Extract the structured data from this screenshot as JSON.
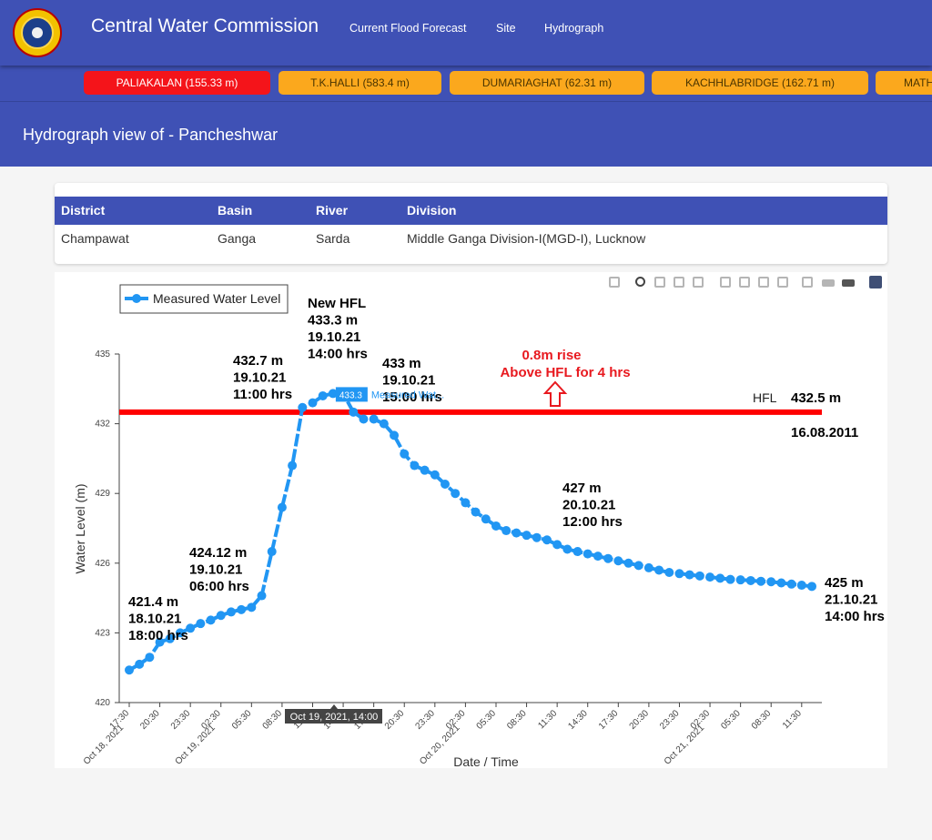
{
  "header": {
    "title": "Central Water Commission",
    "nav": [
      "Current Flood Forecast",
      "Site",
      "Hydrograph"
    ]
  },
  "stations": [
    {
      "label": "PALIAKALAN (155.33 m)",
      "active": true
    },
    {
      "label": "T.K.HALLI (583.4 m)",
      "active": false
    },
    {
      "label": "DUMARIAGHAT (62.31 m)",
      "active": false
    },
    {
      "label": "KACHHLABRIDGE (162.71 m)",
      "active": false
    },
    {
      "label": "MATH",
      "active": false
    }
  ],
  "page": {
    "title": "Hydrograph view of - Pancheshwar"
  },
  "info": {
    "headers": [
      "District",
      "Basin",
      "River",
      "Division"
    ],
    "values": [
      "Champawat",
      "Ganga",
      "Sarda",
      "Middle Ganga Division-I(MGD-I), Lucknow"
    ]
  },
  "colors": {
    "primary": "#3f51b5",
    "active_station": "#f4141a",
    "station": "#fba81d",
    "series": "#2196f3",
    "hfl": "#ff0000"
  },
  "modebar_icons": [
    "camera-icon",
    "zoom-icon",
    "pan-icon",
    "box-select-icon",
    "lasso-icon",
    "zoom-in-icon",
    "zoom-out-icon",
    "autoscale-icon",
    "reset-axes-icon",
    "spike-lines-icon",
    "hover-closest-icon",
    "hover-compare-icon",
    "plotly-logo-icon"
  ],
  "chart_data": {
    "type": "line",
    "legend": "Measured Water Level",
    "ylabel": "Water Level (m)",
    "xlabel": "Date / Time",
    "ylim": [
      420,
      435
    ],
    "yticks": [
      "420",
      "423",
      "426",
      "429",
      "432",
      "435"
    ],
    "x_tick_labels": [
      {
        "t": 0,
        "label": "17:30"
      },
      {
        "t": 3,
        "label": "20:30"
      },
      {
        "t": 6,
        "label": "23:30"
      },
      {
        "t": 9,
        "label": "02:30"
      },
      {
        "t": 12,
        "label": "05:30"
      },
      {
        "t": 15,
        "label": "08:30"
      },
      {
        "t": 18,
        "label": "11:30"
      },
      {
        "t": 21,
        "label": "14:30"
      },
      {
        "t": 24,
        "label": "17:30"
      },
      {
        "t": 27,
        "label": "20:30"
      },
      {
        "t": 30,
        "label": "23:30"
      },
      {
        "t": 33,
        "label": "02:30"
      },
      {
        "t": 36,
        "label": "05:30"
      },
      {
        "t": 39,
        "label": "08:30"
      },
      {
        "t": 42,
        "label": "11:30"
      },
      {
        "t": 45,
        "label": "14:30"
      },
      {
        "t": 48,
        "label": "17:30"
      },
      {
        "t": 51,
        "label": "20:30"
      },
      {
        "t": 54,
        "label": "23:30"
      },
      {
        "t": 57,
        "label": "02:30"
      },
      {
        "t": 60,
        "label": "05:30"
      },
      {
        "t": 63,
        "label": "08:30"
      },
      {
        "t": 66,
        "label": "11:30"
      }
    ],
    "x_date_labels": [
      {
        "t": 0,
        "label": "Oct 18, 2021"
      },
      {
        "t": 9,
        "label": "Oct 19, 2021"
      },
      {
        "t": 33,
        "label": "Oct 20, 2021"
      },
      {
        "t": 57,
        "label": "Oct 21, 2021"
      }
    ],
    "t_start": "Oct 18, 2021, 17:30",
    "t_step_hours": 1,
    "series": [
      {
        "name": "Measured Water Level",
        "values": [
          421.4,
          421.65,
          421.95,
          422.6,
          422.75,
          423.0,
          423.2,
          423.4,
          423.55,
          423.75,
          423.9,
          424.0,
          424.1,
          424.6,
          426.5,
          428.4,
          430.2,
          432.7,
          432.9,
          433.2,
          433.3,
          433.3,
          432.5,
          432.2,
          432.2,
          432.0,
          431.5,
          430.7,
          430.2,
          430.0,
          429.8,
          429.4,
          429.0,
          428.6,
          428.2,
          427.9,
          427.6,
          427.4,
          427.3,
          427.2,
          427.1,
          427.0,
          426.8,
          426.6,
          426.5,
          426.4,
          426.3,
          426.2,
          426.1,
          426.0,
          425.9,
          425.8,
          425.7,
          425.6,
          425.55,
          425.5,
          425.45,
          425.4,
          425.35,
          425.3,
          425.28,
          425.25,
          425.22,
          425.2,
          425.15,
          425.1,
          425.05,
          425.0
        ]
      }
    ],
    "hfl": {
      "label": "HFL",
      "value_label": "432.5 m",
      "date": "16.08.2011",
      "value": 432.5
    },
    "annotations": [
      {
        "text": [
          "421.4 m",
          "18.10.21",
          "18:00 hrs"
        ]
      },
      {
        "text": [
          "424.12 m",
          "19.10.21",
          "06:00 hrs"
        ]
      },
      {
        "text": [
          "432.7 m",
          "19.10.21",
          "11:00 hrs"
        ]
      },
      {
        "text": [
          "New HFL",
          "433.3 m",
          "19.10.21",
          "14:00 hrs"
        ]
      },
      {
        "text": [
          "433 m",
          "19.10.21",
          "15:00 hrs"
        ]
      },
      {
        "text": [
          "427 m",
          "20.10.21",
          "12:00 hrs"
        ]
      },
      {
        "text": [
          "425 m",
          "21.10.21",
          "14:00 hrs"
        ]
      }
    ],
    "rise_note": [
      "0.8m rise",
      "Above HFL for 4 hrs"
    ],
    "hover": {
      "value": "433.3",
      "series": "Measured Wat...",
      "x_label": "Oct 19, 2021, 14:00"
    }
  }
}
